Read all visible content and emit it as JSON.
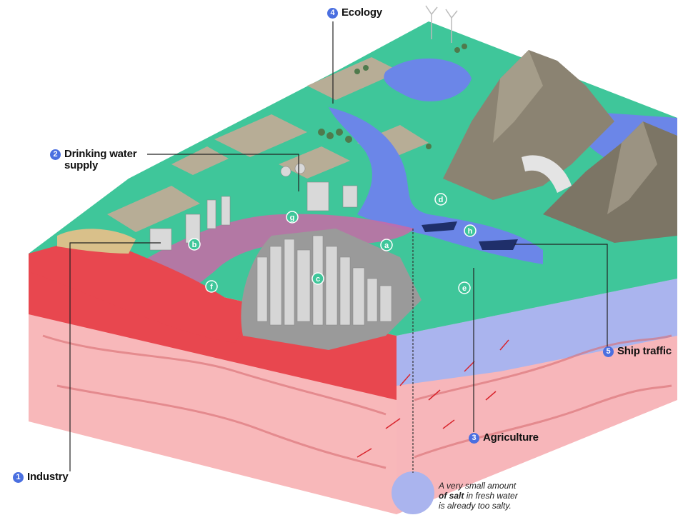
{
  "callouts": [
    {
      "num": "1",
      "label": "Industry"
    },
    {
      "num": "2",
      "label": "Drinking water\nsupply"
    },
    {
      "num": "3",
      "label": "Agriculture"
    },
    {
      "num": "4",
      "label": "Ecology"
    },
    {
      "num": "5",
      "label": "Ship traffic"
    }
  ],
  "markers": [
    "a",
    "b",
    "c",
    "d",
    "e",
    "f",
    "g",
    "h"
  ],
  "note": {
    "part1": "A very small amount",
    "part2": "of salt",
    "part3": "in fresh water",
    "part4": "is already too salty."
  },
  "colors": {
    "sea_red": "#e8474f",
    "soil_pink": "#f6a9ad",
    "fresh_water": "#6b86e8",
    "land_green": "#3fc69a",
    "land_tan": "#b7ad96",
    "mountain": "#8b8372",
    "accent_blue": "#4a6fe0"
  }
}
